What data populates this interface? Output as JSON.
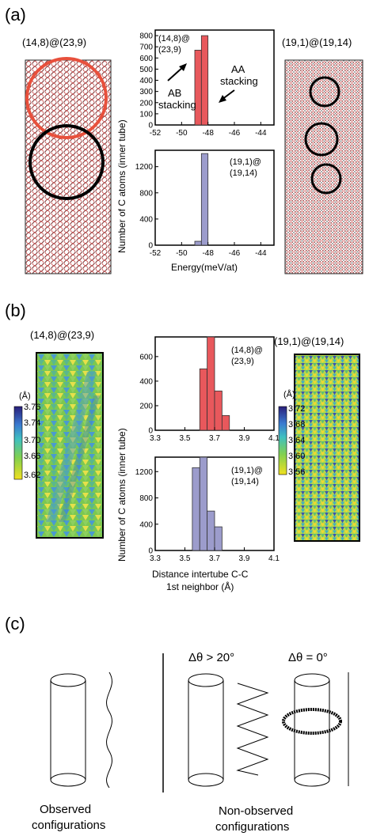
{
  "panel_a": {
    "label": "(a)",
    "left_tube": "(14,8)@(23,9)",
    "right_tube": "(19,1)@(19,14)",
    "hist_top_inset": [
      "(14,8)@",
      "(23,9)"
    ],
    "hist_bottom_inset": [
      "(19,1)@",
      "(19,14)"
    ],
    "ab_label": [
      "AB",
      "stacking"
    ],
    "aa_label": [
      "AA",
      "stacking"
    ],
    "ylabel": "Number of C atoms (inner tube)",
    "xlabel": "Energy(meV/at)",
    "top_xticks": [
      "-52",
      "-50",
      "-48",
      "-46",
      "-44"
    ],
    "top_yticks": [
      "0",
      "100",
      "200",
      "300",
      "400",
      "500",
      "600",
      "700",
      "800"
    ],
    "bottom_xticks": [
      "-52",
      "-50",
      "-48",
      "-46",
      "-44"
    ],
    "bottom_yticks": [
      "0",
      "400",
      "800",
      "1200"
    ]
  },
  "panel_b": {
    "label": "(b)",
    "left_tube": "(14,8)@(23,9)",
    "right_tube": "(19,1)@(19,14)",
    "hist_top_inset": [
      "(14,8)@",
      "(23,9)"
    ],
    "hist_bottom_inset": [
      "(19,1)@",
      "(19,14)"
    ],
    "ylabel": "Number of C atoms (inner tube)",
    "xlabel": [
      "Distance intertube C-C",
      "1st neighbor (Å)"
    ],
    "left_unit": "(Å)",
    "right_unit": "(Å)",
    "left_scale": [
      "3.76",
      "3.74",
      "3.70",
      "3.66",
      "3.62"
    ],
    "right_scale": [
      "3.72",
      "3.68",
      "3.64",
      "3.60",
      "3.56"
    ],
    "top_xticks": [
      "3.3",
      "3.5",
      "3.7",
      "3.9",
      "4.1"
    ],
    "top_yticks": [
      "0",
      "200",
      "400",
      "600"
    ],
    "bottom_xticks": [
      "3.3",
      "3.5",
      "3.7",
      "3.9",
      "4.1"
    ],
    "bottom_yticks": [
      "0",
      "400",
      "800",
      "1200"
    ]
  },
  "panel_c": {
    "label": "(c)",
    "delta_gt": "Δθ > 20°",
    "delta_eq": "Δθ = 0°",
    "observed": [
      "Observed",
      "configurations"
    ],
    "non_observed": [
      "Non-observed",
      "configurations"
    ]
  },
  "colors": {
    "red_bar": "#e8585c",
    "blue_bar": "#9c9ccc",
    "red_circle": "#e8503c"
  },
  "chart_data": [
    {
      "type": "bar",
      "panel": "a-top",
      "x": [
        -48.75,
        -48.25
      ],
      "values": [
        670,
        800
      ],
      "xlim": [
        -52,
        -43
      ],
      "ylim": [
        0,
        850
      ]
    },
    {
      "type": "bar",
      "panel": "a-bottom",
      "x": [
        -48.75,
        -48.25
      ],
      "values": [
        60,
        1400
      ],
      "xlim": [
        -52,
        -43
      ],
      "ylim": [
        0,
        1450
      ]
    },
    {
      "type": "bar",
      "panel": "b-top",
      "x": [
        3.625,
        3.675,
        3.725,
        3.775
      ],
      "values": [
        500,
        760,
        320,
        120
      ],
      "xlim": [
        3.3,
        4.1
      ],
      "ylim": [
        0,
        760
      ]
    },
    {
      "type": "bar",
      "panel": "b-bottom",
      "x": [
        3.575,
        3.625,
        3.675,
        3.725
      ],
      "values": [
        1260,
        1420,
        600,
        360
      ],
      "xlim": [
        3.3,
        4.1
      ],
      "ylim": [
        0,
        1420
      ]
    }
  ]
}
